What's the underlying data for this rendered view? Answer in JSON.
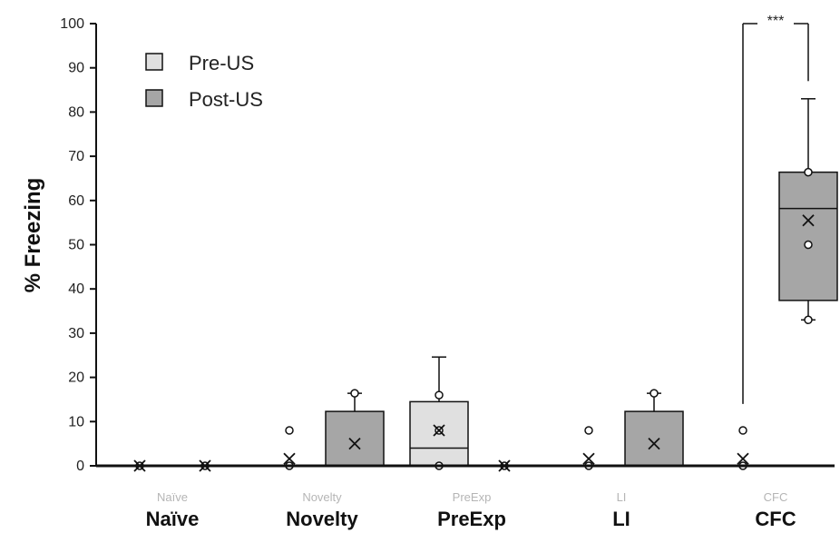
{
  "chart_data": {
    "type": "box",
    "ylabel": "% Freezing",
    "ylim": [
      0,
      100
    ],
    "yticks": [
      "0",
      "10",
      "20",
      "30",
      "40",
      "50",
      "60",
      "70",
      "80",
      "90",
      "100"
    ],
    "categories": [
      {
        "small": "Naïve",
        "big": "Naïve"
      },
      {
        "small": "Novelty",
        "big": "Novelty"
      },
      {
        "small": "PreExp",
        "big": "PreExp"
      },
      {
        "small": "LI",
        "big": "LI"
      },
      {
        "small": "CFC",
        "big": "CFC"
      }
    ],
    "legend": {
      "position": "top-left",
      "entries": [
        "Pre-US",
        "Post-US"
      ]
    },
    "colors": {
      "Pre-US": "#e0e0e0",
      "Post-US": "#a6a6a6",
      "stroke": "#111111"
    },
    "series": [
      {
        "name": "Pre-US",
        "boxes": [
          {
            "min": 0,
            "q1": 0,
            "median": 0,
            "q3": 0,
            "max": 0,
            "mean": 0,
            "points": [
              0
            ]
          },
          {
            "min": 0,
            "q1": 0,
            "median": 0,
            "q3": 0,
            "max": 0,
            "mean": 1.6,
            "points": [
              0,
              8
            ]
          },
          {
            "min": 0,
            "q1": 0,
            "median": 4,
            "q3": 14.5,
            "max": 24.6,
            "mean": 8,
            "points": [
              0,
              8,
              16
            ]
          },
          {
            "min": 0,
            "q1": 0,
            "median": 0,
            "q3": 0,
            "max": 0,
            "mean": 1.6,
            "points": [
              0,
              8
            ]
          },
          {
            "min": 0,
            "q1": 0,
            "median": 0,
            "q3": 0,
            "max": 0,
            "mean": 1.6,
            "points": [
              0,
              8
            ]
          }
        ]
      },
      {
        "name": "Post-US",
        "boxes": [
          {
            "min": 0,
            "q1": 0,
            "median": 0,
            "q3": 0,
            "max": 0,
            "mean": 0,
            "points": [
              0
            ]
          },
          {
            "min": 0,
            "q1": 0,
            "median": 0,
            "q3": 12.3,
            "max": 16.4,
            "mean": 5,
            "points": [
              16.4
            ]
          },
          {
            "min": 0,
            "q1": 0,
            "median": 0,
            "q3": 0,
            "max": 0,
            "mean": 0,
            "points": [
              0
            ]
          },
          {
            "min": 0,
            "q1": 0,
            "median": 0,
            "q3": 12.3,
            "max": 16.4,
            "mean": 5,
            "points": [
              16.4
            ]
          },
          {
            "min": 33,
            "q1": 37.4,
            "median": 58.2,
            "q3": 66.4,
            "max": 83,
            "mean": 55.5,
            "points": [
              33,
              50,
              66.4
            ]
          }
        ]
      }
    ],
    "annotations": [
      {
        "text": "***",
        "between": [
          "CFC Pre-US",
          "CFC Post-US"
        ],
        "top": 100
      }
    ]
  }
}
